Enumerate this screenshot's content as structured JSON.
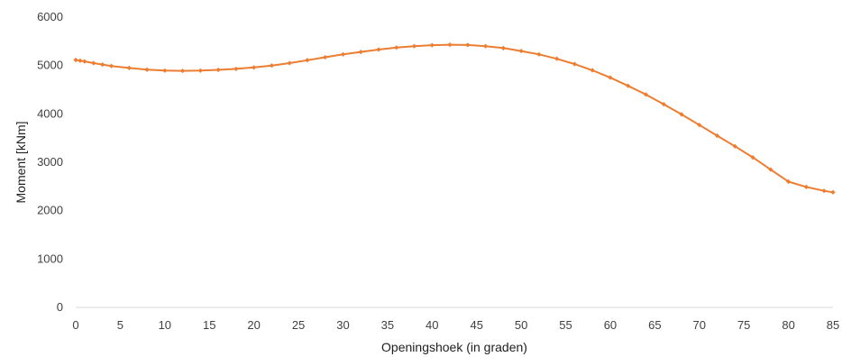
{
  "chart_data": {
    "type": "line",
    "title": "",
    "xlabel": "Openingshoek (in graden)",
    "ylabel": "Moment [kNm]",
    "xlim": [
      0,
      85
    ],
    "ylim": [
      0,
      6000
    ],
    "x_ticks": [
      0,
      5,
      10,
      15,
      20,
      25,
      30,
      35,
      40,
      45,
      50,
      55,
      60,
      65,
      70,
      75,
      80,
      85
    ],
    "y_ticks": [
      0,
      1000,
      2000,
      3000,
      4000,
      5000,
      6000
    ],
    "grid": false,
    "legend": "none",
    "series": [
      {
        "color": "#ED7D31",
        "x": [
          0,
          0.5,
          1,
          2,
          3,
          4,
          6,
          8,
          10,
          12,
          14,
          16,
          18,
          20,
          22,
          24,
          26,
          28,
          30,
          32,
          34,
          36,
          38,
          40,
          42,
          44,
          46,
          48,
          50,
          52,
          54,
          56,
          58,
          60,
          62,
          64,
          66,
          68,
          70,
          72,
          74,
          76,
          78,
          80,
          82,
          84,
          85
        ],
        "y": [
          5115,
          5100,
          5085,
          5050,
          5020,
          4990,
          4950,
          4915,
          4895,
          4890,
          4895,
          4910,
          4930,
          4960,
          5000,
          5050,
          5110,
          5170,
          5230,
          5280,
          5330,
          5370,
          5400,
          5420,
          5430,
          5425,
          5400,
          5360,
          5300,
          5230,
          5140,
          5030,
          4900,
          4750,
          4580,
          4400,
          4200,
          3990,
          3770,
          3550,
          3330,
          3100,
          2850,
          2600,
          2490,
          2410,
          2380
        ]
      }
    ]
  }
}
